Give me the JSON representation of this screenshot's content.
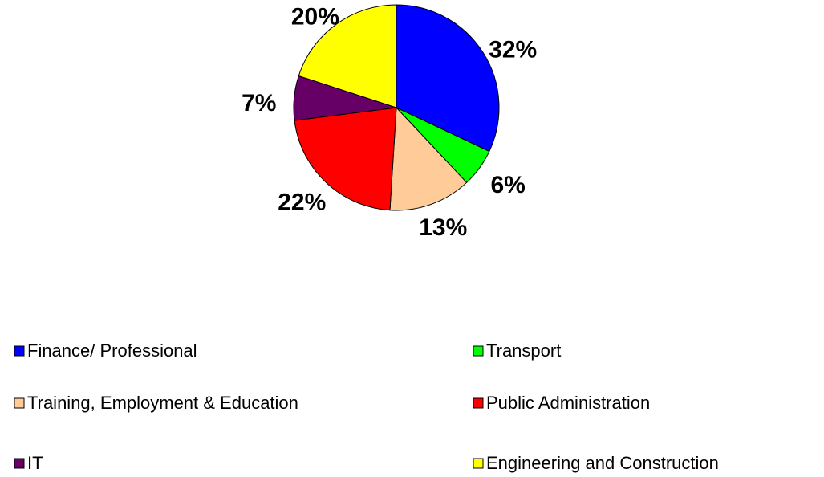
{
  "chart_data": {
    "type": "pie",
    "categories": [
      "Finance/ Professional",
      "Transport",
      "Training, Employment & Education",
      "Public Administration",
      "IT",
      "Engineering and Construction"
    ],
    "values": [
      32,
      6,
      13,
      22,
      7,
      20
    ],
    "value_labels": [
      "32%",
      "6%",
      "13%",
      "22%",
      "7%",
      "20%"
    ],
    "colors": [
      "#0000ff",
      "#00ff00",
      "#ffcc99",
      "#ff0000",
      "#660066",
      "#ffff00"
    ]
  }
}
